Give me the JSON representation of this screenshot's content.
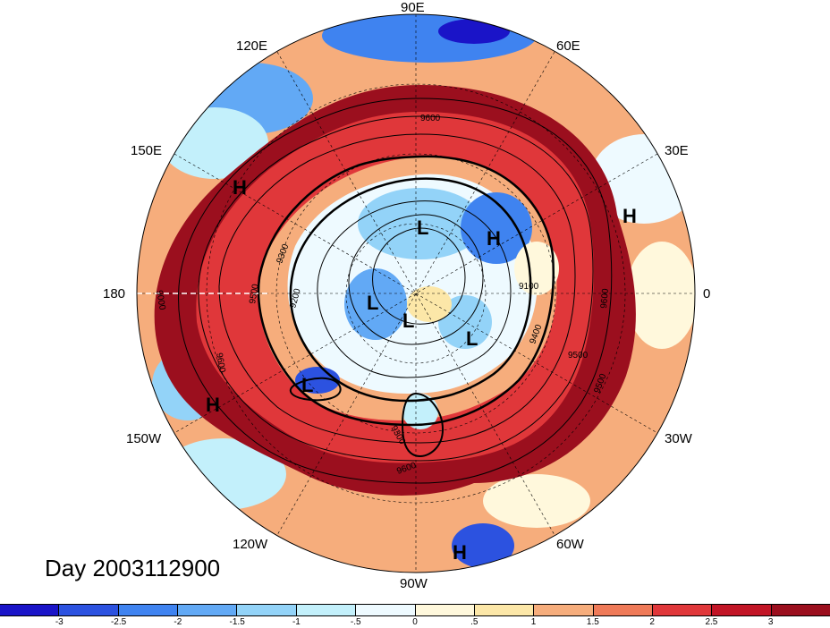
{
  "longitude_labels": [
    {
      "id": "90e",
      "text": "90E"
    },
    {
      "id": "60e",
      "text": "60E"
    },
    {
      "id": "120e",
      "text": "120E"
    },
    {
      "id": "30e",
      "text": "30E"
    },
    {
      "id": "150e",
      "text": "150E"
    },
    {
      "id": "0",
      "text": "0"
    },
    {
      "id": "180",
      "text": "180"
    },
    {
      "id": "30w",
      "text": "30W"
    },
    {
      "id": "150w",
      "text": "150W"
    },
    {
      "id": "60w",
      "text": "60W"
    },
    {
      "id": "120w",
      "text": "120W"
    },
    {
      "id": "90w",
      "text": "90W"
    }
  ],
  "day_label": "Day 2003112900",
  "pressure_centers": [
    "H",
    "H",
    "L",
    "H",
    "L",
    "L",
    "L",
    "L",
    "H",
    "H"
  ],
  "contour_labels": [
    "9600",
    "9300",
    "9500",
    "9200",
    "9100",
    "9400",
    "9500",
    "9600",
    "9600",
    "9300",
    "9600",
    "9500",
    "9000"
  ],
  "colorbar": {
    "colors": [
      "#1a14c8",
      "#2c52e0",
      "#3f83f0",
      "#62a9f5",
      "#93d3f8",
      "#c3f0fb",
      "#eefaff",
      "#fff8dc",
      "#fce7a8",
      "#f6ad7c",
      "#ef7a58",
      "#e0373a",
      "#c21526",
      "#9b0f1e"
    ],
    "labels": [
      "-3",
      "-2.5",
      "-2",
      "-1.5",
      "-1",
      "-.5",
      "0",
      ".5",
      "1",
      "1.5",
      "2",
      "2.5",
      "3"
    ]
  }
}
